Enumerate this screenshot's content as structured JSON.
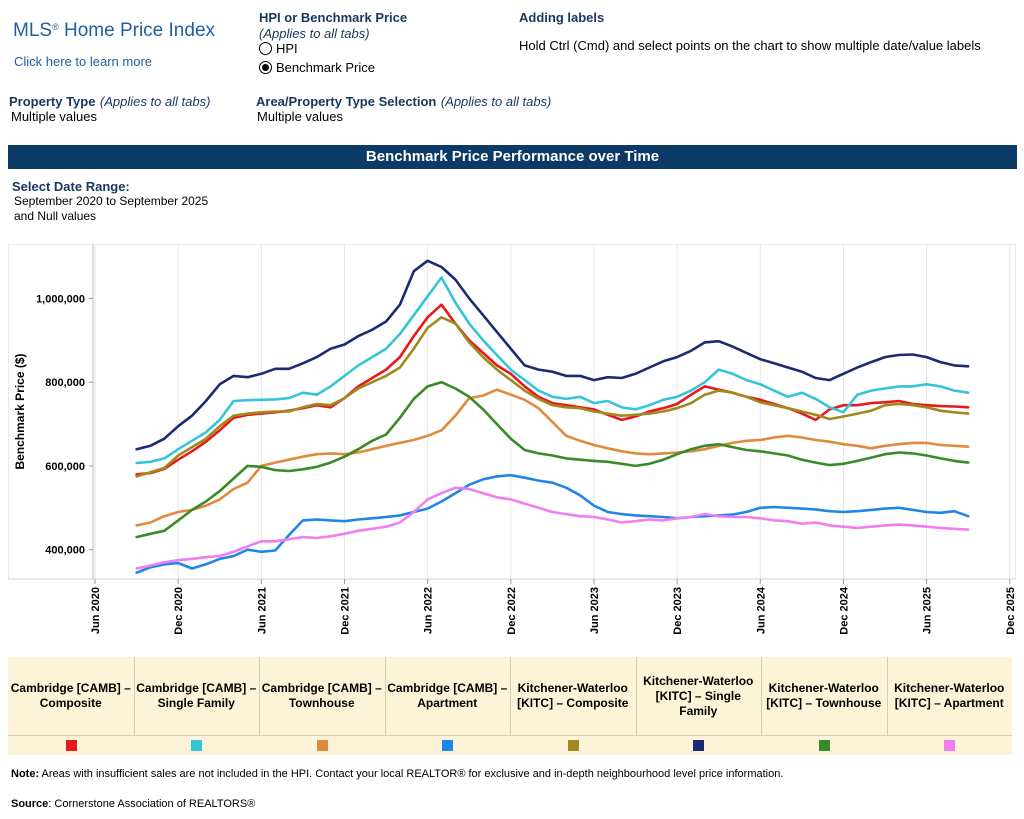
{
  "header": {
    "logo_text": "MLS",
    "logo_reg": "®",
    "logo_rest": " Home Price Index",
    "learn_link": "Click here to learn more"
  },
  "hpi_selector": {
    "title": "HPI or Benchmark Price",
    "note": "(Applies to all tabs)",
    "options": [
      "HPI",
      "Benchmark Price"
    ],
    "selected": "Benchmark Price"
  },
  "labels_help": {
    "title": "Adding labels",
    "text": "Hold Ctrl (Cmd) and select points on the chart to show multiple date/value labels"
  },
  "filters": {
    "property_type_label": "Property Type",
    "property_type_note": "(Applies to all tabs)",
    "property_type_value": "Multiple values",
    "area_label": "Area/Property Type Selection",
    "area_note": "(Applies to all tabs)",
    "area_value": "Multiple values"
  },
  "banner_title": "Benchmark Price Performance over Time",
  "date_range": {
    "label": "Select Date Range:",
    "value_line1": "September 2020 to September 2025",
    "value_line2": "and Null values"
  },
  "chart_data": {
    "type": "line",
    "title": "Benchmark Price Performance over Time",
    "ylabel": "Benchmark Price ($)",
    "xlabel": "",
    "ylim": [
      330000,
      1130000
    ],
    "yticks": [
      400000,
      600000,
      800000,
      1000000
    ],
    "ytick_labels": [
      "400,000",
      "600,000",
      "800,000",
      "1,000,000"
    ],
    "xticks": [
      "Jun 2020",
      "Dec 2020",
      "Jun 2021",
      "Dec 2021",
      "Jun 2022",
      "Dec 2022",
      "Jun 2023",
      "Dec 2023",
      "Jun 2024",
      "Dec 2024",
      "Jun 2025",
      "Dec 2025"
    ],
    "x_start": "2020-09",
    "x_end": "2025-09",
    "grid": "vertical",
    "series": [
      {
        "name": "Cambridge [CAMB] – Composite",
        "color": "#e8191c",
        "values": [
          580000,
          583000,
          593000,
          615000,
          635000,
          658000,
          685000,
          715000,
          722000,
          725000,
          728000,
          732000,
          738000,
          745000,
          740000,
          762000,
          790000,
          810000,
          830000,
          860000,
          910000,
          955000,
          985000,
          940000,
          900000,
          870000,
          840000,
          820000,
          790000,
          765000,
          750000,
          745000,
          740000,
          735000,
          722000,
          710000,
          718000,
          730000,
          738000,
          748000,
          770000,
          790000,
          782000,
          775000,
          765000,
          758000,
          748000,
          738000,
          725000,
          710000,
          735000,
          745000,
          745000,
          750000,
          752000,
          755000,
          748000,
          745000,
          743000,
          742000,
          740000
        ]
      },
      {
        "name": "Cambridge [CAMB] – Single Family",
        "color": "#36c5d8",
        "values": [
          607000,
          610000,
          618000,
          640000,
          660000,
          680000,
          710000,
          755000,
          757000,
          758000,
          759000,
          762000,
          775000,
          770000,
          790000,
          815000,
          840000,
          860000,
          880000,
          915000,
          960000,
          1005000,
          1050000,
          990000,
          940000,
          900000,
          865000,
          830000,
          805000,
          780000,
          765000,
          760000,
          765000,
          750000,
          755000,
          740000,
          735000,
          745000,
          758000,
          765000,
          780000,
          800000,
          830000,
          820000,
          805000,
          795000,
          780000,
          765000,
          775000,
          760000,
          740000,
          728000,
          770000,
          780000,
          785000,
          790000,
          790000,
          795000,
          790000,
          780000,
          775000
        ]
      },
      {
        "name": "Cambridge [CAMB] – Townhouse",
        "color": "#e08a3c",
        "values": [
          458000,
          465000,
          480000,
          490000,
          495000,
          505000,
          520000,
          545000,
          560000,
          600000,
          608000,
          615000,
          622000,
          628000,
          630000,
          628000,
          632000,
          640000,
          648000,
          655000,
          662000,
          672000,
          685000,
          720000,
          762000,
          768000,
          782000,
          770000,
          758000,
          738000,
          705000,
          672000,
          660000,
          650000,
          642000,
          635000,
          630000,
          628000,
          630000,
          632000,
          635000,
          640000,
          648000,
          655000,
          660000,
          662000,
          668000,
          672000,
          668000,
          662000,
          658000,
          652000,
          648000,
          642000,
          648000,
          652000,
          655000,
          655000,
          650000,
          648000,
          646000
        ]
      },
      {
        "name": "Cambridge [CAMB] – Apartment",
        "color": "#1f86e8",
        "values": [
          345000,
          358000,
          365000,
          368000,
          355000,
          365000,
          378000,
          385000,
          400000,
          395000,
          398000,
          435000,
          470000,
          472000,
          470000,
          468000,
          472000,
          475000,
          478000,
          482000,
          490000,
          498000,
          515000,
          535000,
          555000,
          568000,
          575000,
          578000,
          572000,
          565000,
          560000,
          548000,
          530000,
          505000,
          490000,
          485000,
          482000,
          480000,
          478000,
          475000,
          478000,
          480000,
          482000,
          484000,
          490000,
          500000,
          502000,
          500000,
          498000,
          496000,
          492000,
          490000,
          492000,
          495000,
          498000,
          500000,
          495000,
          490000,
          488000,
          492000,
          480000
        ]
      },
      {
        "name": "Kitchener-Waterloo [KITC] – Composite",
        "color": "#a08a1e",
        "values": [
          575000,
          585000,
          595000,
          625000,
          645000,
          665000,
          695000,
          720000,
          725000,
          728000,
          730000,
          730000,
          740000,
          748000,
          745000,
          762000,
          785000,
          800000,
          815000,
          835000,
          880000,
          930000,
          955000,
          940000,
          895000,
          860000,
          830000,
          805000,
          780000,
          760000,
          745000,
          740000,
          738000,
          730000,
          725000,
          720000,
          722000,
          725000,
          730000,
          738000,
          750000,
          770000,
          780000,
          775000,
          765000,
          752000,
          745000,
          738000,
          730000,
          722000,
          712000,
          718000,
          725000,
          732000,
          745000,
          748000,
          745000,
          740000,
          732000,
          728000,
          725000
        ]
      },
      {
        "name": "Kitchener-Waterloo [KITC] – Single Family",
        "color": "#1c2a73",
        "values": [
          640000,
          648000,
          665000,
          695000,
          720000,
          755000,
          795000,
          815000,
          812000,
          820000,
          832000,
          832000,
          845000,
          860000,
          880000,
          890000,
          910000,
          925000,
          945000,
          985000,
          1065000,
          1090000,
          1075000,
          1045000,
          1000000,
          960000,
          920000,
          880000,
          840000,
          830000,
          825000,
          815000,
          815000,
          805000,
          812000,
          810000,
          820000,
          835000,
          850000,
          860000,
          875000,
          895000,
          898000,
          885000,
          870000,
          855000,
          845000,
          835000,
          825000,
          810000,
          805000,
          820000,
          835000,
          848000,
          860000,
          865000,
          866000,
          860000,
          848000,
          840000,
          838000
        ]
      },
      {
        "name": "Kitchener-Waterloo [KITC] – Townhouse",
        "color": "#3a8a2a",
        "values": [
          430000,
          438000,
          445000,
          470000,
          495000,
          515000,
          540000,
          570000,
          600000,
          598000,
          590000,
          588000,
          592000,
          598000,
          608000,
          622000,
          640000,
          660000,
          675000,
          715000,
          760000,
          790000,
          800000,
          785000,
          765000,
          735000,
          700000,
          665000,
          638000,
          630000,
          625000,
          618000,
          615000,
          612000,
          610000,
          605000,
          600000,
          605000,
          615000,
          628000,
          640000,
          648000,
          652000,
          645000,
          638000,
          635000,
          630000,
          625000,
          615000,
          608000,
          602000,
          605000,
          612000,
          620000,
          628000,
          632000,
          630000,
          625000,
          618000,
          612000,
          608000
        ]
      },
      {
        "name": "Kitchener-Waterloo [KITC] – Apartment",
        "color": "#f07ef0",
        "values": [
          355000,
          362000,
          370000,
          375000,
          378000,
          382000,
          385000,
          395000,
          408000,
          420000,
          420000,
          425000,
          430000,
          428000,
          432000,
          438000,
          445000,
          450000,
          455000,
          465000,
          490000,
          520000,
          535000,
          548000,
          545000,
          535000,
          525000,
          520000,
          510000,
          500000,
          490000,
          485000,
          480000,
          478000,
          472000,
          465000,
          468000,
          472000,
          470000,
          475000,
          478000,
          485000,
          480000,
          478000,
          478000,
          475000,
          470000,
          468000,
          462000,
          465000,
          458000,
          455000,
          452000,
          455000,
          458000,
          460000,
          458000,
          455000,
          452000,
          450000,
          448000
        ]
      }
    ]
  },
  "legend": {
    "items": [
      {
        "label": "Cambridge [CAMB] – Composite",
        "color": "#e8191c"
      },
      {
        "label": "Cambridge [CAMB] – Single Family",
        "color": "#36c5d8"
      },
      {
        "label": "Cambridge [CAMB] – Townhouse",
        "color": "#e08a3c"
      },
      {
        "label": "Cambridge [CAMB] – Apartment",
        "color": "#1f86e8"
      },
      {
        "label": "Kitchener-Waterloo [KITC] – Composite",
        "color": "#a08a1e"
      },
      {
        "label": "Kitchener-Waterloo [KITC] – Single Family",
        "color": "#1c2a73"
      },
      {
        "label": "Kitchener-Waterloo [KITC] – Townhouse",
        "color": "#3a8a2a"
      },
      {
        "label": "Kitchener-Waterloo [KITC] – Apartment",
        "color": "#f07ef0"
      }
    ]
  },
  "footer": {
    "note_label": "Note:",
    "note_text": " Areas with insufficient sales are not included in the HPI. Contact your local REALTOR® for exclusive and in-depth neighbourhood level price information.",
    "source_label": "Source",
    "source_text": ": Cornerstone Association of REALTORS®"
  }
}
